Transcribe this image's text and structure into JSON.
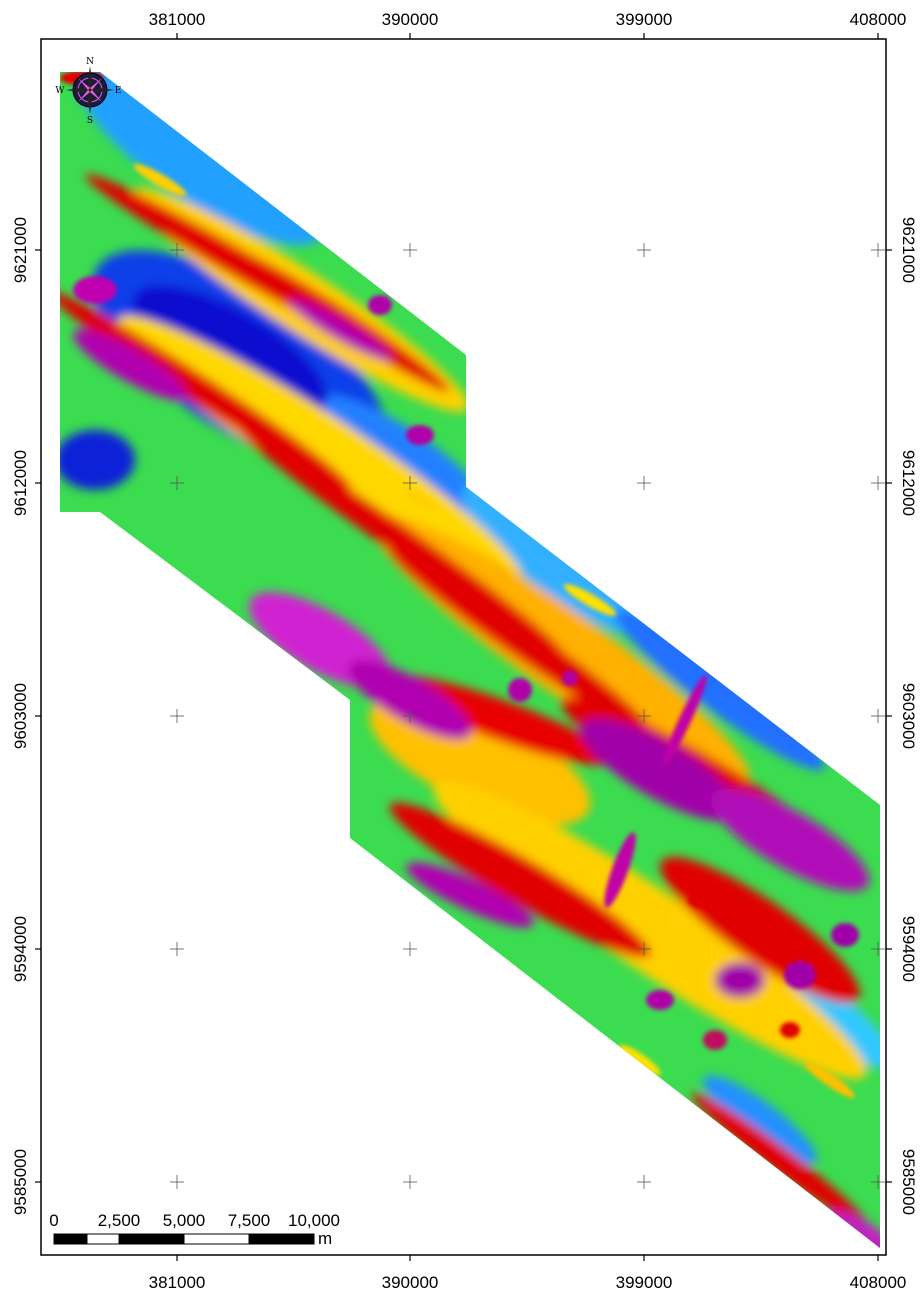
{
  "map": {
    "x_ticks": [
      "381000",
      "390000",
      "399000",
      "408000"
    ],
    "y_ticks": [
      "9621000",
      "9612000",
      "9603000",
      "9594000",
      "9585000"
    ],
    "color_ramp": [
      "#0a00c8",
      "#0050ff",
      "#00c8ff",
      "#3cff3c",
      "#ffff00",
      "#ff8000",
      "#e00000",
      "#c0008c",
      "#ff40ff"
    ],
    "frame_color": "#000000"
  },
  "compass": {
    "north": "N",
    "south": "S",
    "east": "E",
    "west": "W"
  },
  "scale_bar": {
    "labels": [
      "0",
      "2,500",
      "5,000",
      "7,500",
      "10,000"
    ],
    "unit": "m"
  }
}
